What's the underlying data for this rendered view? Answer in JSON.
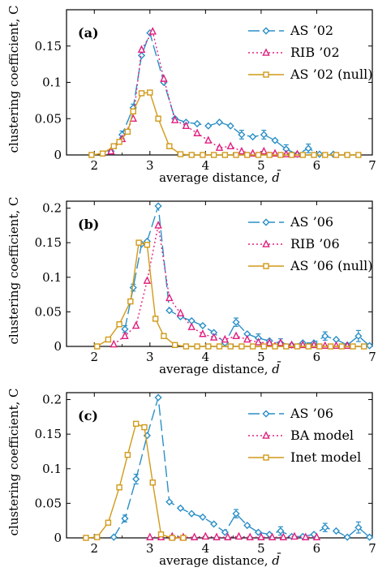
{
  "colors": {
    "as": "#2a8fc7",
    "rib": "#e0207f",
    "null": "#d19a1a",
    "axis": "#000000"
  },
  "chart_data": [
    {
      "type": "line",
      "panel_label": "(a)",
      "xlabel": "average distance, ",
      "xlabel_symbol": "d̄",
      "ylabel": "clustering coefficient, C",
      "xlim": [
        1.5,
        7
      ],
      "ylim": [
        0,
        0.2
      ],
      "xticks": [
        2,
        3,
        4,
        5,
        6,
        7
      ],
      "yticks": [
        0,
        0.05,
        0.1,
        0.15
      ],
      "ytick_labels": [
        "0",
        "0.05",
        "0.1",
        "0.15"
      ],
      "grid": false,
      "legend_position": "top-right",
      "series": [
        {
          "name": "AS ’02",
          "color_key": "as",
          "marker": "diamond",
          "dash": "longdash",
          "x": [
            2.3,
            2.5,
            2.7,
            2.85,
            3.0,
            3.25,
            3.45,
            3.65,
            3.85,
            4.05,
            4.25,
            4.45,
            4.65,
            4.85,
            5.05,
            5.25,
            5.45,
            5.65,
            5.85,
            6.05,
            6.3
          ],
          "y": [
            0.005,
            0.028,
            0.065,
            0.137,
            0.168,
            0.1,
            0.05,
            0.045,
            0.043,
            0.04,
            0.045,
            0.04,
            0.028,
            0.025,
            0.028,
            0.02,
            0.008,
            0.001,
            0.009,
            0.001,
            0.001
          ],
          "err": [
            0,
            0.005,
            0.005,
            0,
            0,
            0,
            0,
            0,
            0,
            0,
            0,
            0,
            0.006,
            0,
            0.006,
            0,
            0.006,
            0,
            0.006,
            0,
            0
          ]
        },
        {
          "name": "RIB ’02",
          "color_key": "rib",
          "marker": "triangle",
          "dash": "dotted",
          "x": [
            2.3,
            2.5,
            2.7,
            2.85,
            3.05,
            3.25,
            3.45,
            3.65,
            3.85,
            4.05,
            4.25,
            4.45,
            4.65,
            4.85,
            5.05,
            5.25,
            5.45,
            5.65
          ],
          "y": [
            0.005,
            0.022,
            0.05,
            0.145,
            0.17,
            0.105,
            0.048,
            0.04,
            0.03,
            0.02,
            0.01,
            0.012,
            0.005,
            0.002,
            0.005,
            0.002,
            0.001,
            0.001
          ],
          "err": [
            0,
            0,
            0,
            0,
            0,
            0,
            0,
            0,
            0,
            0,
            0,
            0,
            0,
            0,
            0,
            0,
            0,
            0
          ]
        },
        {
          "name": "AS ’02 (null)",
          "color_key": "null",
          "marker": "square",
          "dash": "solid",
          "x": [
            1.95,
            2.15,
            2.35,
            2.45,
            2.6,
            2.7,
            2.85,
            3.0,
            3.15,
            3.35,
            3.55,
            3.75,
            3.95,
            4.15,
            4.35,
            4.55,
            4.75,
            4.95,
            5.15,
            5.35,
            5.55,
            5.75,
            5.95,
            6.15,
            6.35,
            6.55,
            6.75
          ],
          "y": [
            0,
            0.002,
            0.012,
            0.018,
            0.032,
            0.06,
            0.085,
            0.086,
            0.05,
            0.012,
            0.001,
            0,
            0,
            0,
            0,
            0,
            0,
            0,
            0,
            0,
            0,
            0,
            0,
            0,
            0,
            0,
            0
          ],
          "err": []
        }
      ]
    },
    {
      "type": "line",
      "panel_label": "(b)",
      "xlabel": "average distance, ",
      "xlabel_symbol": "d̄",
      "ylabel": "clustering coefficient, C",
      "xlim": [
        1.5,
        7
      ],
      "ylim": [
        0,
        0.21
      ],
      "xticks": [
        2,
        3,
        4,
        5,
        6,
        7
      ],
      "yticks": [
        0,
        0.05,
        0.1,
        0.15,
        0.2
      ],
      "ytick_labels": [
        "0",
        "0.05",
        "0.1",
        "0.15",
        "0.2"
      ],
      "grid": false,
      "legend_position": "top-right",
      "series": [
        {
          "name": "AS ’06",
          "color_key": "as",
          "marker": "diamond",
          "dash": "longdash",
          "x": [
            2.55,
            2.7,
            2.85,
            2.95,
            3.15,
            3.35,
            3.55,
            3.75,
            3.95,
            4.15,
            4.35,
            4.55,
            4.75,
            4.95,
            5.15,
            5.35,
            5.55,
            5.75,
            5.95,
            6.15,
            6.35,
            6.55,
            6.75,
            6.95
          ],
          "y": [
            0.025,
            0.085,
            0.148,
            0.152,
            0.203,
            0.052,
            0.043,
            0.037,
            0.03,
            0.02,
            0.005,
            0.035,
            0.018,
            0.012,
            0.008,
            0.005,
            0.002,
            0.005,
            0.005,
            0.015,
            0.01,
            0.002,
            0.015,
            0.001
          ],
          "err": [
            0.005,
            0.005,
            0,
            0,
            0,
            0,
            0,
            0,
            0,
            0,
            0,
            0.006,
            0,
            0.006,
            0,
            0.006,
            0,
            0,
            0,
            0.006,
            0,
            0,
            0.008,
            0
          ]
        },
        {
          "name": "RIB ’06",
          "color_key": "rib",
          "marker": "triangle",
          "dash": "dotted",
          "x": [
            2.35,
            2.55,
            2.75,
            2.95,
            3.15,
            3.35,
            3.55,
            3.75,
            3.95,
            4.15,
            4.35,
            4.55,
            4.75,
            4.95,
            5.15,
            5.35,
            5.55,
            5.75,
            5.95,
            6.15,
            6.35,
            6.55
          ],
          "y": [
            0.003,
            0.015,
            0.03,
            0.095,
            0.175,
            0.07,
            0.048,
            0.028,
            0.018,
            0.013,
            0.01,
            0.015,
            0.01,
            0.006,
            0.005,
            0.005,
            0.002,
            0.002,
            0.002,
            0.001,
            0.001,
            0.001
          ],
          "err": []
        },
        {
          "name": "AS ’06 (null)",
          "color_key": "null",
          "marker": "square",
          "dash": "solid",
          "x": [
            2.05,
            2.25,
            2.45,
            2.65,
            2.8,
            2.95,
            3.1,
            3.25,
            3.45,
            3.65,
            3.85,
            4.05,
            4.25,
            4.45,
            4.65,
            4.85,
            5.05,
            5.25,
            5.45,
            5.65,
            5.85,
            6.05,
            6.25,
            6.45,
            6.65,
            6.85
          ],
          "y": [
            0,
            0.01,
            0.032,
            0.065,
            0.15,
            0.147,
            0.04,
            0.015,
            0.002,
            0,
            0,
            0,
            0,
            0,
            0,
            0,
            0,
            0,
            0,
            0,
            0,
            0,
            0,
            0,
            0,
            0
          ],
          "err": []
        }
      ]
    },
    {
      "type": "line",
      "panel_label": "(c)",
      "xlabel": "average distance, ",
      "xlabel_symbol": "d̄",
      "ylabel": "clustering coefficient, C",
      "xlim": [
        1.5,
        7
      ],
      "ylim": [
        0,
        0.21
      ],
      "xticks": [
        2,
        3,
        4,
        5,
        6,
        7
      ],
      "yticks": [
        0,
        0.05,
        0.1,
        0.15,
        0.2
      ],
      "ytick_labels": [
        "0",
        "0.05",
        "0.1",
        "0.15",
        "0.2"
      ],
      "grid": false,
      "legend_position": "top-right",
      "series": [
        {
          "name": "AS ’06",
          "color_key": "as",
          "marker": "diamond",
          "dash": "longdash",
          "x": [
            2.35,
            2.55,
            2.75,
            2.95,
            3.15,
            3.35,
            3.55,
            3.75,
            3.95,
            4.15,
            4.35,
            4.55,
            4.75,
            4.95,
            5.15,
            5.35,
            5.55,
            5.75,
            5.95,
            6.15,
            6.35,
            6.55,
            6.75,
            6.95
          ],
          "y": [
            0.001,
            0.028,
            0.085,
            0.148,
            0.203,
            0.052,
            0.043,
            0.035,
            0.03,
            0.02,
            0.008,
            0.035,
            0.018,
            0.008,
            0.005,
            0.01,
            0.002,
            0.002,
            0.005,
            0.015,
            0.01,
            0.001,
            0.015,
            0.001
          ],
          "err": [
            0,
            0.005,
            0.007,
            0,
            0,
            0,
            0,
            0,
            0,
            0,
            0,
            0.006,
            0,
            0,
            0,
            0.006,
            0,
            0,
            0,
            0.006,
            0,
            0,
            0.008,
            0
          ]
        },
        {
          "name": "BA model",
          "color_key": "rib",
          "marker": "triangle",
          "dash": "dotted",
          "x": [
            3.0,
            3.2,
            3.4,
            3.6,
            3.8,
            4.0,
            4.2,
            4.4,
            4.6,
            4.8,
            5.0,
            5.2,
            5.4,
            5.6,
            5.8,
            6.0
          ],
          "y": [
            0.001,
            0.001,
            0.002,
            0.001,
            0.001,
            0.002,
            0.001,
            0.001,
            0.002,
            0.001,
            0.001,
            0.001,
            0.001,
            0.002,
            0.001,
            0.001
          ],
          "err": []
        },
        {
          "name": "Inet model",
          "color_key": "null",
          "marker": "square",
          "dash": "solid",
          "x": [
            1.85,
            2.05,
            2.25,
            2.45,
            2.6,
            2.75,
            2.9,
            3.05,
            3.2,
            3.4,
            3.6
          ],
          "y": [
            0,
            0.001,
            0.022,
            0.073,
            0.12,
            0.165,
            0.16,
            0.08,
            0.005,
            0,
            0
          ],
          "err": []
        }
      ]
    }
  ]
}
